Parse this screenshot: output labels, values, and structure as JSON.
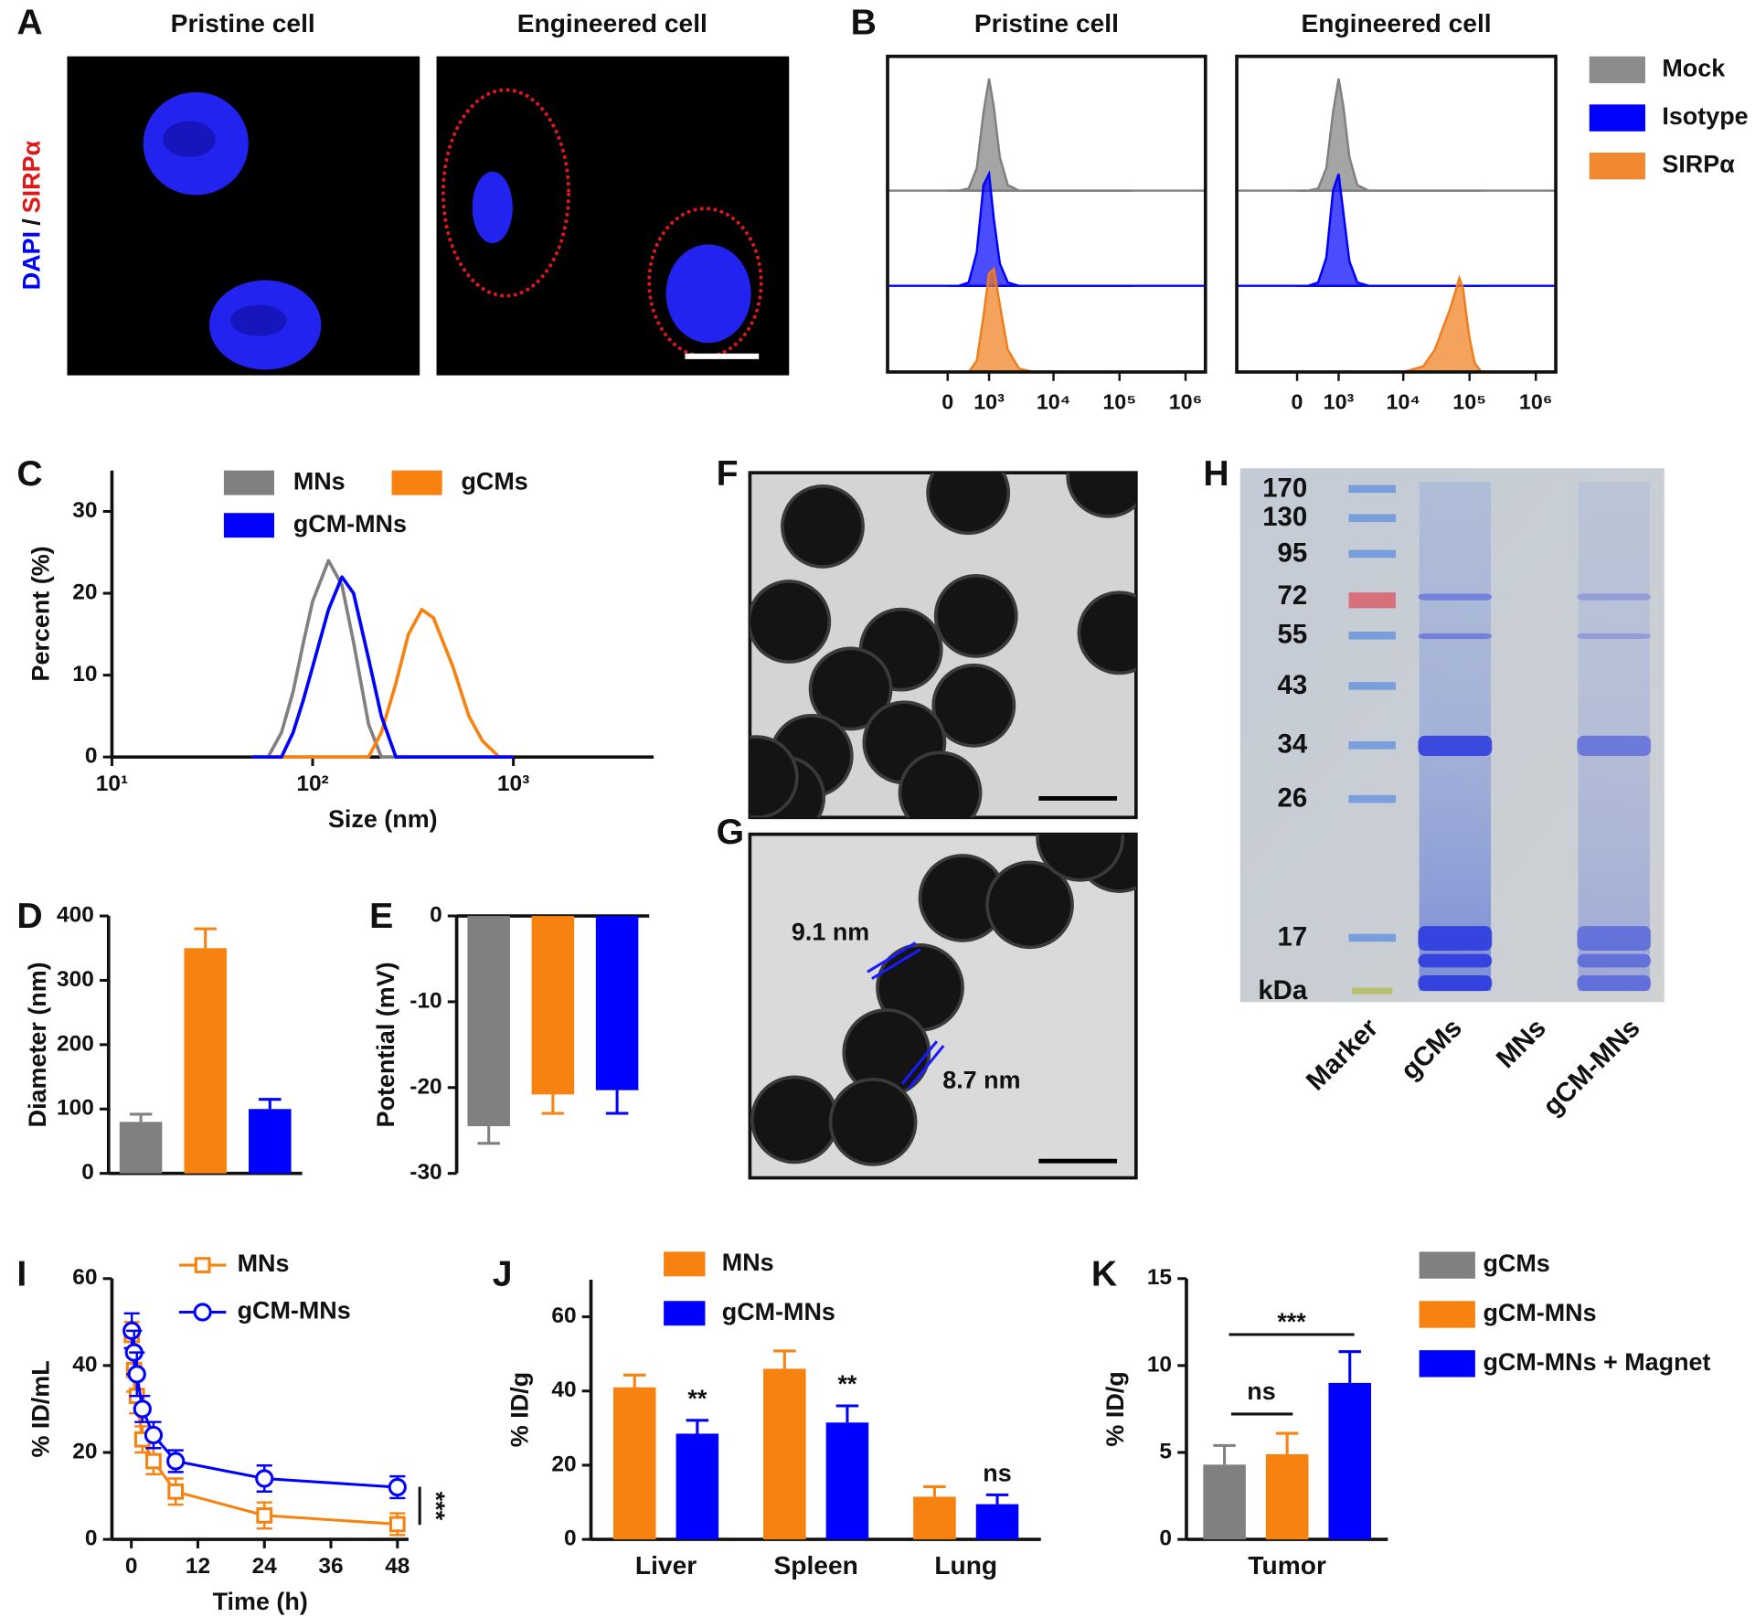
{
  "figure": {
    "panel_labels": [
      "A",
      "B",
      "C",
      "D",
      "E",
      "F",
      "G",
      "H",
      "I",
      "J",
      "K"
    ]
  },
  "images": {
    "A": {
      "titles": [
        "Pristine cell",
        "Engineered cell"
      ],
      "stain": [
        "DAPI",
        "/",
        "SIRPα"
      ]
    },
    "G": {
      "annotations": [
        "9.1 nm",
        "8.7 nm"
      ]
    },
    "H": {
      "marker_kda": [
        170,
        130,
        95,
        72,
        55,
        43,
        34,
        26,
        17
      ],
      "unit": "kDa",
      "lanes": [
        "Marker",
        "gCMs",
        "MNs",
        "gCM-MNs"
      ]
    }
  },
  "chart_data": [
    {
      "type": "flow",
      "titles": [
        "Pristine cell",
        "Engineered cell"
      ],
      "legend": [
        {
          "name": "Mock",
          "color": "#7f7f7f"
        },
        {
          "name": "Isotype",
          "color": "#0000ff"
        },
        {
          "name": "SIRPα",
          "color": "#f07c1a"
        }
      ],
      "xscale": "asinh",
      "x": [
        0,
        200,
        400,
        600,
        800,
        1000,
        1200,
        1500,
        2000,
        3000,
        5000,
        10000,
        20000,
        30000,
        40000,
        50000,
        60000,
        70000,
        80000,
        90000,
        100000,
        120000,
        150000
      ],
      "xlim": [
        -2000,
        2000000
      ],
      "xticks": [
        0,
        {
          "value": 1000,
          "label": "10³"
        },
        {
          "value": 10000,
          "label": "10⁴"
        },
        {
          "value": 100000,
          "label": "10⁵"
        },
        {
          "value": 1000000,
          "label": "10⁶"
        }
      ],
      "ylim": [
        0,
        120
      ],
      "counts": [
        [
          [
            0,
            0,
            2,
            20,
            70,
            100,
            75,
            30,
            5,
            0,
            0,
            0,
            0,
            0,
            0,
            0,
            0,
            0,
            0,
            0,
            0,
            0,
            0
          ],
          [
            0,
            0,
            3,
            30,
            90,
            100,
            60,
            20,
            3,
            0,
            0,
            0,
            0,
            0,
            0,
            0,
            0,
            0,
            0,
            0,
            0,
            0,
            0
          ],
          [
            0,
            0,
            0,
            10,
            50,
            88,
            92,
            60,
            20,
            3,
            0,
            0,
            0,
            0,
            0,
            0,
            0,
            0,
            0,
            0,
            0,
            0,
            0
          ]
        ],
        [
          [
            0,
            0,
            2,
            20,
            70,
            100,
            75,
            30,
            5,
            0,
            0,
            0,
            0,
            0,
            0,
            0,
            0,
            0,
            0,
            0,
            0,
            0,
            0
          ],
          [
            0,
            0,
            3,
            25,
            85,
            100,
            65,
            22,
            3,
            0,
            0,
            0,
            0,
            0,
            0,
            0,
            0,
            0,
            0,
            0,
            0,
            0,
            0
          ],
          [
            0,
            0,
            0,
            0,
            0,
            0,
            0,
            0,
            0,
            0,
            0,
            0,
            5,
            20,
            40,
            55,
            70,
            84,
            75,
            50,
            30,
            8,
            0
          ]
        ]
      ]
    },
    {
      "type": "line",
      "xscale": "log",
      "x": [
        50,
        60,
        70,
        80,
        90,
        100,
        120,
        140,
        160,
        190,
        220,
        260,
        300,
        350,
        400,
        500,
        600,
        700,
        850,
        1000
      ],
      "series": [
        {
          "name": "MNs",
          "color": "#808080",
          "values": [
            0,
            0,
            3,
            8,
            14,
            19,
            24,
            21,
            14,
            4,
            0,
            0,
            0,
            0,
            0,
            0,
            0,
            0,
            0,
            0
          ]
        },
        {
          "name": "gCMs",
          "color": "#f7820f",
          "values": [
            0,
            0,
            0,
            0,
            0,
            0,
            0,
            0,
            0,
            0,
            3,
            9,
            15,
            18,
            17,
            11,
            5,
            2,
            0,
            0
          ]
        },
        {
          "name": "gCM-MNs",
          "color": "#0000ff",
          "values": [
            0,
            0,
            0,
            3,
            7,
            11,
            18,
            22,
            20,
            12,
            5,
            0,
            0,
            0,
            0,
            0,
            0,
            0,
            0,
            0
          ]
        }
      ],
      "xlim": [
        10,
        5000
      ],
      "xticks": [
        {
          "value": 10,
          "label": "10¹"
        },
        {
          "value": 100,
          "label": "10²"
        },
        {
          "value": 1000,
          "label": "10³"
        }
      ],
      "ylim": [
        0,
        35
      ],
      "yticks": [
        0,
        10,
        20,
        30
      ],
      "xlabel": "Size (nm)",
      "ylabel": "Percent (%)"
    },
    {
      "type": "bar",
      "categories": [
        null,
        null,
        null
      ],
      "values": [
        80,
        350,
        100
      ],
      "errors": [
        12,
        30,
        15
      ],
      "colors": [
        "#808080",
        "#f7820f",
        "#0000ff"
      ],
      "ylim": [
        0,
        400
      ],
      "yticks": [
        0,
        100,
        200,
        300,
        400
      ],
      "ylabel": "Diameter (nm)"
    },
    {
      "type": "bar",
      "categories": [
        null,
        null,
        null
      ],
      "values": [
        -24.5,
        -20.8,
        -20.3
      ],
      "errors": [
        2,
        2.2,
        2.7
      ],
      "colors": [
        "#808080",
        "#f7820f",
        "#0000ff"
      ],
      "ylim": [
        -30,
        0
      ],
      "yticks": [
        -30,
        -20,
        -10,
        0
      ],
      "ylabel": "Potential (mV)"
    },
    {
      "type": "line-error",
      "x": [
        0.083,
        0.5,
        1,
        2,
        4,
        8,
        24,
        48
      ],
      "series": [
        {
          "name": "MNs",
          "color": "#f7820f",
          "marker": "square",
          "values": [
            47,
            39,
            33,
            23,
            18,
            11,
            5.5,
            3.5
          ],
          "errors": [
            3,
            5,
            4,
            3,
            3,
            3,
            3,
            2.5
          ]
        },
        {
          "name": "gCM-MNs",
          "color": "#0000ff",
          "marker": "circle",
          "values": [
            48,
            43,
            38,
            30,
            24,
            18,
            14,
            12
          ],
          "errors": [
            4,
            5,
            5,
            3,
            3,
            2.5,
            3,
            2.5
          ]
        }
      ],
      "xlim": [
        -3.5,
        50
      ],
      "xticks": [
        0,
        12,
        24,
        36,
        48
      ],
      "ylim": [
        0,
        60
      ],
      "yticks": [
        0,
        20,
        40,
        60
      ],
      "xlabel": "Time (h)",
      "ylabel": "% ID/mL",
      "annotation": "***"
    },
    {
      "type": "grouped-bar",
      "categories": [
        "Liver",
        "Spleen",
        "Lung"
      ],
      "series": [
        {
          "name": "MNs",
          "color": "#f7820f",
          "values": [
            41,
            46,
            11.5
          ],
          "errors": [
            3.3,
            4.8,
            2.7
          ]
        },
        {
          "name": "gCM-MNs",
          "color": "#0000ff",
          "values": [
            28.5,
            31.5,
            9.5
          ],
          "errors": [
            3.6,
            4.5,
            2.5
          ]
        }
      ],
      "ylim": [
        0,
        70
      ],
      "yticks": [
        0,
        20,
        40,
        60
      ],
      "ylabel": "% ID/g",
      "annotations": [
        "**",
        "**",
        "ns"
      ]
    },
    {
      "type": "grouped-bar",
      "categories": [
        "Tumor"
      ],
      "series": [
        {
          "name": "gCMs",
          "color": "#808080",
          "values": [
            4.3
          ],
          "errors": [
            1.1
          ]
        },
        {
          "name": "gCM-MNs",
          "color": "#f7820f",
          "values": [
            4.9
          ],
          "errors": [
            1.2
          ]
        },
        {
          "name": "gCM-MNs + Magnet",
          "color": "#0000ff",
          "values": [
            9
          ],
          "errors": [
            1.8
          ]
        }
      ],
      "ylim": [
        0,
        15
      ],
      "yticks": [
        0,
        5,
        10,
        15
      ],
      "ylabel": "% ID/g",
      "annotations": [
        "ns",
        "***"
      ]
    }
  ]
}
